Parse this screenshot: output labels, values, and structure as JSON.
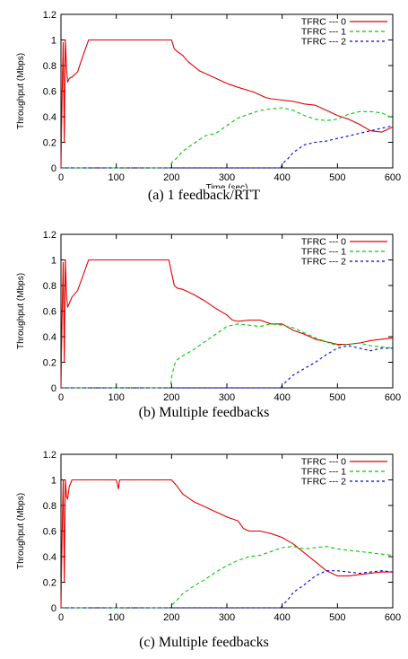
{
  "chart_data": [
    {
      "type": "line",
      "caption": "(a)  1  feedback/RTT",
      "xlabel": "Time (sec)",
      "ylabel": "Throughput (Mbps)",
      "xlim": [
        0,
        600
      ],
      "ylim": [
        0,
        1.2
      ],
      "xticks": [
        "0",
        "100",
        "200",
        "300",
        "400",
        "500",
        "600"
      ],
      "yticks": [
        "0",
        "0.2",
        "0.4",
        "0.6",
        "0.8",
        "1",
        "1.2"
      ],
      "legend_position": "top-right",
      "series": [
        {
          "name": "TFRC --- 0",
          "color": "#e00000",
          "dash": "solid",
          "x": [
            0,
            2,
            4,
            6,
            8,
            10,
            12,
            15,
            20,
            30,
            40,
            50,
            100,
            150,
            200,
            205,
            210,
            220,
            230,
            250,
            270,
            300,
            320,
            350,
            370,
            380,
            400,
            420,
            440,
            460,
            480,
            500,
            520,
            540,
            560,
            580,
            600
          ],
          "y": [
            0,
            0.55,
            0.98,
            0.2,
            1.0,
            0.78,
            0.67,
            0.7,
            0.71,
            0.75,
            0.88,
            1.0,
            1.0,
            1.0,
            1.0,
            0.93,
            0.91,
            0.88,
            0.83,
            0.76,
            0.72,
            0.66,
            0.63,
            0.59,
            0.55,
            0.54,
            0.53,
            0.52,
            0.5,
            0.49,
            0.45,
            0.41,
            0.38,
            0.34,
            0.29,
            0.28,
            0.32
          ]
        },
        {
          "name": "TFRC --- 1",
          "color": "#00cc00",
          "dash": "4,3",
          "x": [
            0,
            198,
            200,
            210,
            220,
            240,
            260,
            280,
            300,
            320,
            340,
            360,
            380,
            400,
            420,
            440,
            460,
            480,
            500,
            520,
            540,
            560,
            580,
            600
          ],
          "y": [
            0,
            0,
            0.04,
            0.08,
            0.13,
            0.19,
            0.25,
            0.27,
            0.33,
            0.39,
            0.42,
            0.45,
            0.46,
            0.47,
            0.45,
            0.41,
            0.38,
            0.37,
            0.38,
            0.42,
            0.44,
            0.44,
            0.43,
            0.39
          ]
        },
        {
          "name": "TFRC --- 2",
          "color": "#0000dd",
          "dash": "3,3",
          "x": [
            0,
            398,
            400,
            410,
            420,
            440,
            460,
            480,
            500,
            520,
            540,
            560,
            580,
            600
          ],
          "y": [
            0,
            0,
            0.03,
            0.07,
            0.12,
            0.18,
            0.2,
            0.21,
            0.23,
            0.25,
            0.27,
            0.29,
            0.31,
            0.33
          ]
        }
      ]
    },
    {
      "type": "line",
      "caption": "(b)  Multiple  feedbacks",
      "xlabel": "",
      "ylabel": "Throughput (Mbps)",
      "xlim": [
        0,
        600
      ],
      "ylim": [
        0,
        1.2
      ],
      "xticks": [
        "0",
        "100",
        "200",
        "300",
        "400",
        "500",
        "600"
      ],
      "yticks": [
        "0",
        "0.2",
        "0.4",
        "0.6",
        "0.8",
        "1",
        "1.2"
      ],
      "legend_position": "top-right",
      "series": [
        {
          "name": "TFRC --- 0",
          "color": "#e00000",
          "dash": "solid",
          "x": [
            0,
            2,
            4,
            6,
            8,
            10,
            12,
            15,
            20,
            30,
            40,
            50,
            100,
            150,
            195,
            200,
            205,
            210,
            220,
            240,
            260,
            280,
            300,
            310,
            320,
            340,
            360,
            380,
            400,
            420,
            440,
            460,
            480,
            500,
            520,
            540,
            560,
            580,
            600
          ],
          "y": [
            0,
            0.55,
            0.98,
            0.2,
            1.0,
            0.72,
            0.63,
            0.66,
            0.71,
            0.76,
            0.88,
            1.0,
            1.0,
            1.0,
            1.0,
            0.9,
            0.8,
            0.78,
            0.77,
            0.73,
            0.68,
            0.62,
            0.57,
            0.53,
            0.52,
            0.53,
            0.53,
            0.5,
            0.5,
            0.45,
            0.42,
            0.38,
            0.36,
            0.34,
            0.34,
            0.35,
            0.37,
            0.38,
            0.39
          ]
        },
        {
          "name": "TFRC --- 1",
          "color": "#00cc00",
          "dash": "4,3",
          "x": [
            0,
            198,
            200,
            205,
            210,
            220,
            240,
            260,
            280,
            300,
            320,
            340,
            360,
            380,
            400,
            420,
            440,
            460,
            480,
            500,
            520,
            540,
            560,
            580,
            600
          ],
          "y": [
            0,
            0,
            0.08,
            0.18,
            0.22,
            0.25,
            0.3,
            0.36,
            0.42,
            0.48,
            0.5,
            0.49,
            0.48,
            0.5,
            0.49,
            0.47,
            0.43,
            0.39,
            0.36,
            0.33,
            0.34,
            0.35,
            0.33,
            0.32,
            0.31
          ]
        },
        {
          "name": "TFRC --- 2",
          "color": "#0000dd",
          "dash": "3,3",
          "x": [
            0,
            398,
            400,
            410,
            420,
            440,
            460,
            480,
            500,
            520,
            540,
            560,
            580,
            600
          ],
          "y": [
            0,
            0,
            0.02,
            0.06,
            0.1,
            0.15,
            0.2,
            0.26,
            0.31,
            0.33,
            0.31,
            0.29,
            0.31,
            0.31
          ]
        }
      ]
    },
    {
      "type": "line",
      "caption": "(c)  Multiple  feedbacks",
      "xlabel": "",
      "ylabel": "Throughput (Mbps)",
      "xlim": [
        0,
        600
      ],
      "ylim": [
        0,
        1.2
      ],
      "xticks": [
        "0",
        "100",
        "200",
        "300",
        "400",
        "500",
        "600"
      ],
      "yticks": [
        "0",
        "0.2",
        "0.4",
        "0.6",
        "0.8",
        "1",
        "1.2"
      ],
      "legend_position": "top-right",
      "series": [
        {
          "name": "TFRC --- 0",
          "color": "#e00000",
          "dash": "solid",
          "x": [
            0,
            2,
            4,
            6,
            8,
            10,
            12,
            15,
            20,
            25,
            100,
            104,
            106,
            110,
            200,
            210,
            220,
            240,
            260,
            280,
            300,
            320,
            330,
            340,
            360,
            380,
            400,
            420,
            440,
            460,
            480,
            500,
            520,
            540,
            560,
            580,
            600
          ],
          "y": [
            0,
            0.55,
            1.0,
            0.2,
            1.0,
            0.87,
            0.85,
            0.95,
            1.0,
            1.0,
            1.0,
            0.93,
            1.0,
            1.0,
            1.0,
            0.95,
            0.89,
            0.83,
            0.79,
            0.75,
            0.71,
            0.68,
            0.62,
            0.6,
            0.6,
            0.58,
            0.55,
            0.5,
            0.43,
            0.36,
            0.29,
            0.25,
            0.25,
            0.26,
            0.27,
            0.28,
            0.28
          ]
        },
        {
          "name": "TFRC --- 1",
          "color": "#00cc00",
          "dash": "4,3",
          "x": [
            0,
            198,
            200,
            210,
            220,
            240,
            260,
            280,
            300,
            320,
            340,
            360,
            380,
            400,
            420,
            440,
            460,
            480,
            500,
            520,
            540,
            560,
            580,
            600
          ],
          "y": [
            0,
            0,
            0.02,
            0.06,
            0.11,
            0.17,
            0.22,
            0.28,
            0.33,
            0.37,
            0.4,
            0.41,
            0.44,
            0.47,
            0.48,
            0.46,
            0.47,
            0.48,
            0.46,
            0.45,
            0.44,
            0.43,
            0.42,
            0.41
          ]
        },
        {
          "name": "TFRC --- 2",
          "color": "#0000dd",
          "dash": "3,3",
          "x": [
            0,
            398,
            400,
            410,
            420,
            440,
            460,
            480,
            500,
            520,
            540,
            560,
            580,
            600
          ],
          "y": [
            0,
            0,
            0.02,
            0.06,
            0.12,
            0.18,
            0.25,
            0.29,
            0.29,
            0.28,
            0.27,
            0.28,
            0.29,
            0.28
          ]
        }
      ]
    }
  ]
}
